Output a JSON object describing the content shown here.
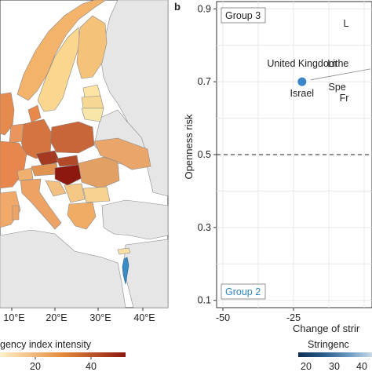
{
  "colors": {
    "sea": "#ffffff",
    "land_other": "#e6e6e6",
    "border": "#8a8a8a",
    "scale_low": "#fdf0c8",
    "scale_mid": "#e48a3c",
    "scale_high": "#8c1810",
    "israel": "#3a8cc4",
    "point": "#3a86c8",
    "group2_text": "#2f86c4",
    "stringency_scale": [
      "#0e2f55",
      "#2a5c8c",
      "#6f9cc4",
      "#c9d9e8"
    ]
  },
  "panel_a": {
    "lon_ticks": [
      "10°E",
      "20°E",
      "30°E",
      "40°E"
    ],
    "legend_label": "gency index intensity",
    "legend_ticks": [
      "20",
      "40"
    ]
  },
  "panel_b": {
    "panel_letter": "b",
    "group3_label": "Group 3",
    "group2_label": "Group 2",
    "bottom_legend_label": "Stringenc",
    "bottom_legend_ticks": [
      "20",
      "30",
      "40"
    ]
  },
  "chart_data": {
    "type": "scatter",
    "xlabel": "Change of strir",
    "ylabel": "Openness risk",
    "xlim": [
      -50,
      -10
    ],
    "ylim": [
      0.08,
      0.92
    ],
    "x_ticks": [
      -50,
      -25
    ],
    "y_ticks": [
      0.1,
      0.3,
      0.5,
      0.7,
      0.9
    ],
    "x_tick_labels": [
      "-50",
      "-25"
    ],
    "y_tick_labels": [
      "0.1",
      "0.3",
      "0.5",
      "0.7",
      "0.9"
    ],
    "hline": 0.5,
    "grid": true,
    "points": [
      {
        "name": "Israel",
        "x": -22,
        "y": 0.7
      }
    ],
    "text_annotations": [
      {
        "text": "United Kingdom",
        "x": -22,
        "y": 0.75
      },
      {
        "text": "L",
        "x": -11,
        "y": 0.86
      },
      {
        "text": "Lithe",
        "x": -11,
        "y": 0.75
      },
      {
        "text": "Spe",
        "x": -12,
        "y": 0.685
      },
      {
        "text": "Fr",
        "x": -11,
        "y": 0.655
      }
    ]
  }
}
